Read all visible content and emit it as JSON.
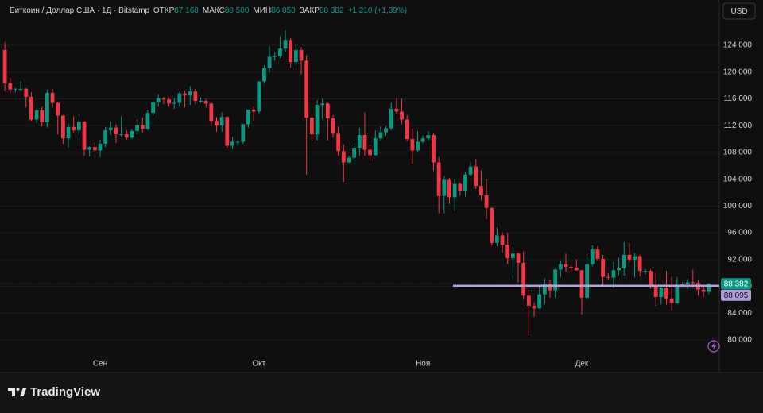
{
  "chart_data": {
    "type": "candlestick",
    "title": "Биткоин / Доллар США · 1Д · Bitstamp",
    "ohlc_labels": [
      "ОТКР",
      "МАКС",
      "МИН",
      "ЗАКР"
    ],
    "ohlc_value_labels": [
      "87 168",
      "88 500",
      "86 850",
      "88 382"
    ],
    "change_label": "+1 210 (+1,39%)",
    "currency": "USD",
    "brand": "TradingView",
    "up_color": "#089981",
    "down_color": "#f23645",
    "categories": [
      null,
      null,
      null,
      null,
      null,
      null,
      null,
      null,
      null,
      null,
      null,
      null,
      null,
      null,
      null,
      null,
      null,
      null,
      "Сен",
      null,
      null,
      null,
      null,
      null,
      null,
      null,
      null,
      null,
      null,
      null,
      null,
      null,
      null,
      null,
      null,
      null,
      null,
      null,
      null,
      null,
      null,
      null,
      null,
      null,
      null,
      null,
      null,
      null,
      "Окт",
      null,
      null,
      null,
      null,
      null,
      null,
      null,
      null,
      null,
      null,
      null,
      null,
      null,
      null,
      null,
      null,
      null,
      null,
      null,
      null,
      null,
      null,
      null,
      null,
      null,
      null,
      null,
      null,
      null,
      null,
      "Ноя",
      null,
      null,
      null,
      null,
      null,
      null,
      null,
      null,
      null,
      null,
      null,
      null,
      null,
      null,
      null,
      null,
      null,
      null,
      null,
      null,
      null,
      null,
      null,
      null,
      null,
      null,
      null,
      null,
      null,
      "Дек",
      null,
      null,
      null,
      null,
      null,
      null,
      null,
      null,
      null,
      null,
      null,
      null,
      null,
      null,
      null,
      null,
      null,
      null,
      null,
      null,
      null,
      null,
      null,
      null
    ],
    "open": [
      123300,
      118300,
      117400,
      117500,
      117500,
      116300,
      112900,
      114300,
      112500,
      116900,
      115400,
      113500,
      110100,
      111800,
      111300,
      112600,
      108400,
      108800,
      108300,
      109300,
      111300,
      111700,
      110700,
      110700,
      110200,
      111200,
      112100,
      111500,
      113900,
      115500,
      116100,
      115900,
      115300,
      115400,
      116800,
      116500,
      117100,
      115700,
      115700,
      115300,
      112700,
      112000,
      113300,
      109000,
      109600,
      109600,
      112200,
      114400,
      114100,
      118600,
      120600,
      122300,
      122400,
      123500,
      124800,
      121500,
      123300,
      121700,
      113200,
      110700,
      115100,
      115300,
      113100,
      110800,
      108200,
      106500,
      107200,
      108700,
      110600,
      108400,
      107600,
      110100,
      111000,
      111600,
      114500,
      114100,
      112900,
      110000,
      108300,
      109600,
      110100,
      110600,
      106500,
      101500,
      103900,
      101300,
      103300,
      102300,
      104700,
      105900,
      103000,
      101600,
      99700,
      94500,
      95600,
      94200,
      92200,
      92900,
      91500,
      86600,
      85100,
      84700,
      86800,
      88300,
      87400,
      90500,
      91300,
      90900,
      90800,
      90400,
      86300,
      91300,
      93500,
      92100,
      89400,
      89300,
      90400,
      90700,
      92700,
      92000,
      92500,
      90300,
      90300,
      88200,
      86400,
      87800,
      86200,
      85500,
      88100,
      88300,
      88600,
      88500,
      87500,
      87168
    ],
    "high": [
      124500,
      119200,
      117600,
      118600,
      117600,
      117000,
      114600,
      114800,
      117400,
      117500,
      115600,
      113600,
      112300,
      113400,
      113000,
      112700,
      108900,
      109500,
      109900,
      111800,
      112600,
      112200,
      113400,
      111300,
      111500,
      112900,
      113200,
      114300,
      115600,
      116700,
      116300,
      116100,
      116100,
      117000,
      117200,
      117900,
      117500,
      116200,
      116000,
      115400,
      113300,
      114000,
      113400,
      110300,
      109800,
      112300,
      114400,
      114800,
      118600,
      121000,
      123900,
      122900,
      125400,
      126200,
      125100,
      124100,
      123700,
      122500,
      113700,
      115800,
      116000,
      115400,
      113600,
      111900,
      109200,
      107500,
      109400,
      111700,
      114000,
      109100,
      111300,
      111900,
      111900,
      115400,
      116100,
      116000,
      113600,
      111600,
      111200,
      110500,
      111200,
      110800,
      107300,
      104500,
      104200,
      104000,
      103500,
      105000,
      106600,
      107000,
      105300,
      104000,
      99800,
      96800,
      96100,
      96000,
      93900,
      93100,
      93200,
      87500,
      85600,
      88000,
      89200,
      89000,
      90600,
      91900,
      92900,
      91200,
      92000,
      90400,
      92300,
      94100,
      94000,
      92700,
      90000,
      91700,
      92300,
      94600,
      94500,
      93000,
      92700,
      90600,
      90500,
      90000,
      88200,
      90300,
      89400,
      89400,
      88600,
      89100,
      90500,
      88900,
      88000,
      88500
    ],
    "low": [
      117200,
      116800,
      117000,
      117200,
      114700,
      112700,
      112400,
      111900,
      111700,
      114700,
      110700,
      109300,
      108700,
      110900,
      110500,
      107500,
      107400,
      108100,
      107300,
      108800,
      110600,
      109400,
      110300,
      109900,
      110000,
      110700,
      110900,
      111300,
      113500,
      114800,
      115200,
      114800,
      114500,
      114800,
      114700,
      115100,
      115200,
      115400,
      114700,
      111900,
      111100,
      111100,
      108700,
      108600,
      109100,
      109300,
      111700,
      112700,
      113800,
      118400,
      119900,
      121700,
      122100,
      123000,
      120700,
      121000,
      119700,
      104700,
      109700,
      109800,
      113000,
      109800,
      110200,
      107500,
      103600,
      106400,
      106100,
      107500,
      107500,
      106700,
      107500,
      109700,
      110500,
      111300,
      113800,
      112200,
      109700,
      106300,
      108000,
      109400,
      109800,
      105300,
      98900,
      98900,
      100300,
      99300,
      101500,
      101400,
      104500,
      102500,
      100800,
      98000,
      94100,
      94000,
      93000,
      91300,
      89300,
      88600,
      86100,
      80600,
      83500,
      84700,
      85300,
      86300,
      86300,
      89300,
      90200,
      90200,
      90300,
      83800,
      86100,
      91000,
      91800,
      88100,
      89000,
      87700,
      89700,
      89600,
      91600,
      89300,
      89500,
      89800,
      87600,
      85100,
      85300,
      85300,
      84400,
      85400,
      87900,
      87600,
      87900,
      86600,
      86400,
      86850
    ],
    "close": [
      118300,
      117400,
      117500,
      117500,
      116300,
      112900,
      114300,
      112500,
      116900,
      115400,
      113500,
      110100,
      111800,
      111300,
      112600,
      108400,
      108800,
      108300,
      109300,
      111300,
      111700,
      110700,
      110700,
      110200,
      111200,
      112100,
      111500,
      113900,
      115500,
      116100,
      115900,
      115300,
      115400,
      116800,
      116500,
      117100,
      115700,
      115700,
      115300,
      112700,
      112000,
      113300,
      109000,
      109600,
      109600,
      112200,
      114400,
      114100,
      118600,
      120600,
      122300,
      122400,
      123500,
      124800,
      121500,
      123300,
      121700,
      113200,
      110700,
      115100,
      115300,
      113100,
      110800,
      108200,
      106500,
      107200,
      108700,
      110600,
      108400,
      107600,
      110100,
      111000,
      111600,
      114500,
      114100,
      112900,
      110000,
      108300,
      109600,
      110100,
      110600,
      106500,
      101500,
      103900,
      101300,
      103300,
      102300,
      104700,
      105900,
      103000,
      101600,
      99700,
      94500,
      95600,
      94200,
      92200,
      92900,
      91500,
      86600,
      85100,
      84700,
      86800,
      88300,
      87400,
      90500,
      91300,
      90900,
      90800,
      90400,
      86300,
      91300,
      93500,
      92100,
      89400,
      89300,
      90400,
      90700,
      92700,
      92000,
      92500,
      90300,
      90300,
      88200,
      86400,
      87800,
      86200,
      85500,
      88100,
      88300,
      88600,
      88500,
      87500,
      87172,
      88382
    ],
    "ylim": [
      75250,
      130170
    ],
    "yticks": [
      {
        "value": 80000,
        "label": "80 000"
      },
      {
        "value": 84000,
        "label": "84 000"
      },
      {
        "value": 88000,
        "label": "88 000"
      },
      {
        "value": 92000,
        "label": "92 000"
      },
      {
        "value": 96000,
        "label": "96 000"
      },
      {
        "value": 100000,
        "label": "100 000"
      },
      {
        "value": 104000,
        "label": "104 000"
      },
      {
        "value": 108000,
        "label": "108 000"
      },
      {
        "value": 112000,
        "label": "112 000"
      },
      {
        "value": 116000,
        "label": "116 000"
      },
      {
        "value": 120000,
        "label": "120 000"
      },
      {
        "value": 124000,
        "label": "124 000"
      }
    ],
    "grid": true,
    "last_price": {
      "value": 88382,
      "label": "88 382",
      "color": "#089981"
    },
    "price_line": {
      "value": 88095,
      "label": "88 095",
      "color": "#b39ddb"
    }
  }
}
